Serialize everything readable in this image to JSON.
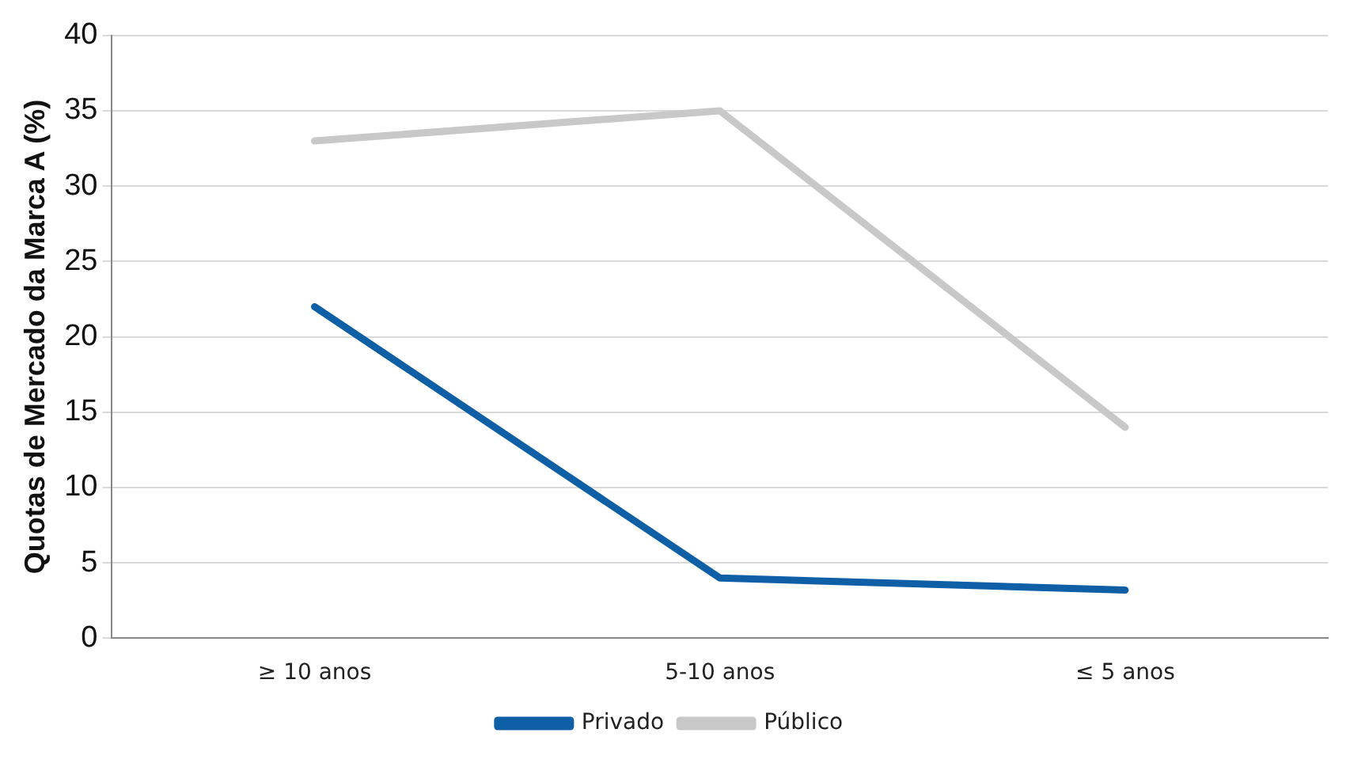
{
  "chart_data": {
    "type": "line",
    "ylabel": "Quotas de Mercado da Marca A (%)",
    "categories": [
      "≥ 10 anos",
      "5-10 anos",
      "≤ 5 anos"
    ],
    "series": [
      {
        "name": "Privado",
        "color": "#0f5fa6",
        "values": [
          22,
          4,
          3.2
        ]
      },
      {
        "name": "Público",
        "color": "#c8c8c8",
        "values": [
          33,
          35,
          14
        ]
      }
    ],
    "ylim": [
      0,
      40
    ],
    "yticks": [
      0,
      5,
      10,
      15,
      20,
      25,
      30,
      35,
      40
    ],
    "grid": "y",
    "legend": "bottom",
    "marker": "none"
  }
}
